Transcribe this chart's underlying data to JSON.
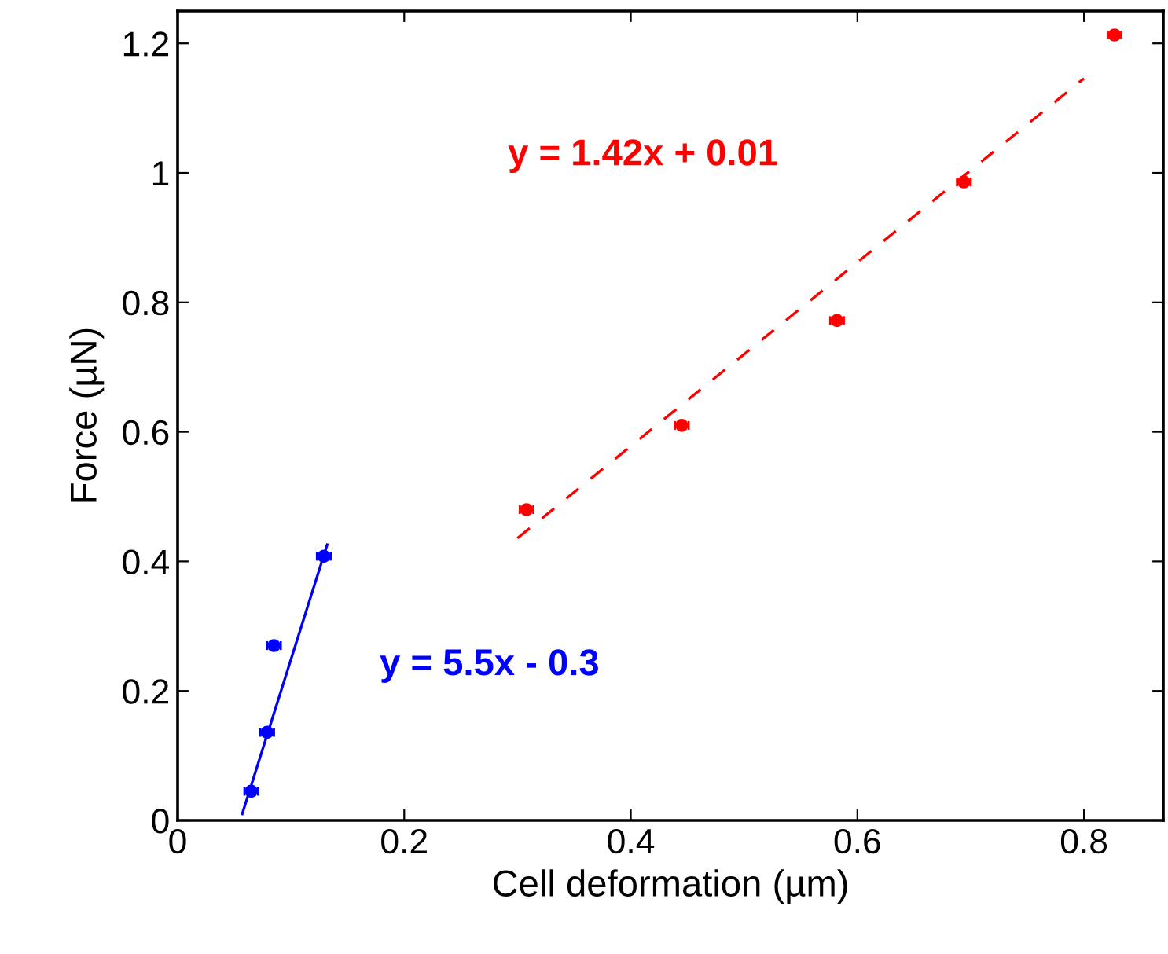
{
  "chart_data": {
    "type": "scatter",
    "xlabel": "Cell deformation (µm)",
    "ylabel": "Force (µN)",
    "xlim": [
      0,
      0.87
    ],
    "ylim": [
      0,
      1.25
    ],
    "xticks": [
      0,
      0.2,
      0.4,
      0.6,
      0.8
    ],
    "yticks": [
      0,
      0.2,
      0.4,
      0.6,
      0.8,
      1,
      1.2
    ],
    "grid": false,
    "series": [
      {
        "marker": "circle",
        "color": "#ff0000",
        "x": [
          0.308,
          0.445,
          0.582,
          0.694,
          0.827
        ],
        "values": [
          0.48,
          0.61,
          0.772,
          0.986,
          1.213
        ],
        "xerrors": [
          0.006,
          0.006,
          0.006,
          0.006,
          0.006
        ]
      },
      {
        "marker": "circle",
        "color": "#0000ff",
        "x": [
          0.065,
          0.079,
          0.085,
          0.129
        ],
        "values": [
          0.045,
          0.136,
          0.27,
          0.408
        ],
        "xerrors": [
          0.006,
          0.006,
          0.006,
          0.006
        ]
      },
      {
        "type": "line",
        "color": "#ff0000",
        "line_style": "dashed",
        "x": [
          0.3,
          0.8
        ],
        "values": [
          0.436,
          1.146
        ]
      },
      {
        "type": "line",
        "color": "#0000ff",
        "line_style": "solid",
        "x": [
          0.057,
          0.132
        ],
        "values": [
          0.01,
          0.426
        ]
      }
    ],
    "annotations": [
      "y = 1.42x + 0.01",
      "y = 5.5x - 0.3"
    ]
  }
}
